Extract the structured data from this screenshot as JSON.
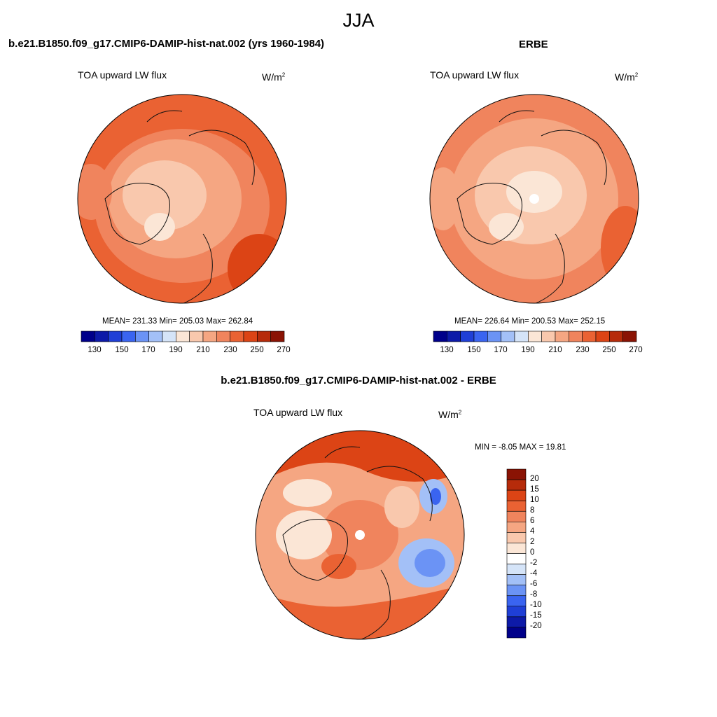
{
  "season": "JJA",
  "top_left": {
    "title": "b.e21.B1850.f09_g17.CMIP6-DAMIP-hist-nat.002 (yrs 1960-1984)",
    "variable": "TOA upward LW flux",
    "units": "W/m",
    "units_sup": "2",
    "stats": "MEAN= 231.33  Min= 205.03  Max= 262.84"
  },
  "top_right": {
    "title": "ERBE",
    "variable": "TOA upward LW flux",
    "units": "W/m",
    "units_sup": "2",
    "stats": "MEAN= 226.64  Min= 200.53  Max= 252.15"
  },
  "bottom": {
    "title": "b.e21.B1850.f09_g17.CMIP6-DAMIP-hist-nat.002 - ERBE",
    "variable": "TOA upward LW flux",
    "units": "W/m",
    "units_sup": "2",
    "stats": "MIN =  -8.05 MAX =  19.81"
  },
  "abs_colorbar": {
    "colors": [
      "#00008a",
      "#0d1aa8",
      "#1f3fd6",
      "#3a64f0",
      "#6b93f5",
      "#a3c0f7",
      "#d5e4f8",
      "#fbe6d6",
      "#f9c8ad",
      "#f5a682",
      "#f0845d",
      "#ea6233",
      "#dc4415",
      "#b62b0a",
      "#8a1304"
    ],
    "labels": [
      "130",
      "150",
      "170",
      "190",
      "210",
      "230",
      "250",
      "270"
    ]
  },
  "diff_colorbar": {
    "colors": [
      "#00008a",
      "#0d1aa8",
      "#1f3fd6",
      "#3a64f0",
      "#6b93f5",
      "#a3c0f7",
      "#d5e4f8",
      "#ffffff",
      "#fbe6d6",
      "#f9c8ad",
      "#f5a682",
      "#f0845d",
      "#ea6233",
      "#dc4415",
      "#b62b0a",
      "#8a1304"
    ],
    "labels": [
      "20",
      "15",
      "10",
      "8",
      "6",
      "4",
      "2",
      "0",
      "-2",
      "-4",
      "-6",
      "-8",
      "-10",
      "-15",
      "-20"
    ]
  }
}
